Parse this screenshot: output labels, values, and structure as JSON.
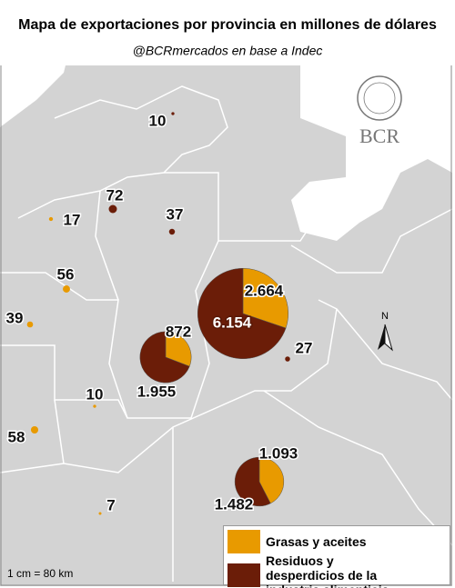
{
  "title": "Mapa de exportaciones por provincia en millones de dólares",
  "subtitle": "@BCRmercados en base a Indec",
  "logo": "BCR",
  "north": "N",
  "scale": "1 cm = 80 km",
  "legend": [
    {
      "name": "Grasas y aceites",
      "color": "#e89a00"
    },
    {
      "name": "Residuos y desperdicios de la industria alimenticia",
      "color": "#6b1d08"
    }
  ],
  "pies": [
    {
      "values": [
        2664,
        6154
      ],
      "value_labels": [
        "2.664",
        "6.154"
      ]
    },
    {
      "values": [
        872,
        1955
      ],
      "value_labels": [
        "872",
        "1.955"
      ]
    },
    {
      "values": [
        1093,
        1482
      ],
      "value_labels": [
        "1.093",
        "1.482"
      ]
    }
  ],
  "points": [
    {
      "value": 10,
      "color": "#6b1d08"
    },
    {
      "value": 72,
      "color": "#6b1d08"
    },
    {
      "value": 17,
      "color": "#e89a00"
    },
    {
      "value": 37,
      "color": "#6b1d08"
    },
    {
      "value": 56,
      "color": "#e89a00"
    },
    {
      "value": 39,
      "color": "#e89a00"
    },
    {
      "value": 10,
      "color": "#e89a00"
    },
    {
      "value": 58,
      "color": "#e89a00"
    },
    {
      "value": 7,
      "color": "#e89a00"
    },
    {
      "value": 27,
      "color": "#6b1d08"
    }
  ]
}
